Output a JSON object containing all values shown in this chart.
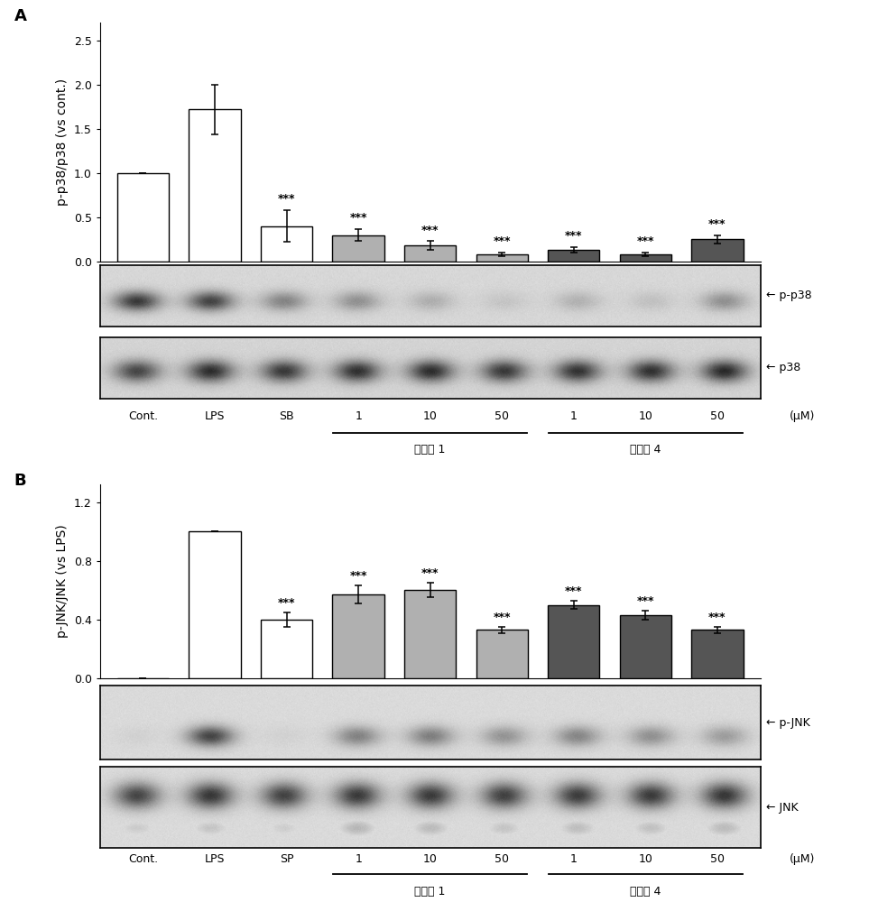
{
  "panel_A": {
    "categories": [
      "Cont.",
      "LPS",
      "SB",
      "1",
      "10",
      "50",
      "1",
      "10",
      "50"
    ],
    "values": [
      1.0,
      1.72,
      0.4,
      0.3,
      0.18,
      0.08,
      0.13,
      0.08,
      0.25
    ],
    "errors": [
      0.0,
      0.28,
      0.18,
      0.07,
      0.05,
      0.02,
      0.03,
      0.02,
      0.05
    ],
    "colors": [
      "white",
      "white",
      "white",
      "#b0b0b0",
      "#b0b0b0",
      "#b0b0b0",
      "#555555",
      "#555555",
      "#555555"
    ],
    "significance": [
      "",
      "",
      "***",
      "***",
      "***",
      "***",
      "***",
      "***",
      "***"
    ],
    "ylabel": "p-p38/p38 (vs cont.)",
    "yticks": [
      0.0,
      0.5,
      1.0,
      1.5,
      2.0,
      2.5
    ],
    "ylim": [
      0,
      2.7
    ],
    "compound1_label": "化合物 1",
    "compound4_label": "化合物 4",
    "um_label": "(μM)",
    "blot_label1": "← p-p38",
    "blot_label2": "← p38",
    "panel_label": "A",
    "blot1_bands": [
      0.85,
      0.8,
      0.45,
      0.38,
      0.22,
      0.1,
      0.2,
      0.12,
      0.38
    ],
    "blot2_bands": [
      0.75,
      0.88,
      0.82,
      0.86,
      0.88,
      0.82,
      0.85,
      0.86,
      0.9
    ]
  },
  "panel_B": {
    "categories": [
      "Cont.",
      "LPS",
      "SP",
      "1",
      "10",
      "50",
      "1",
      "10",
      "50"
    ],
    "values": [
      0.0,
      1.0,
      0.4,
      0.57,
      0.6,
      0.33,
      0.5,
      0.43,
      0.33
    ],
    "errors": [
      0.0,
      0.0,
      0.05,
      0.06,
      0.05,
      0.02,
      0.03,
      0.03,
      0.02
    ],
    "colors": [
      "white",
      "white",
      "white",
      "#b0b0b0",
      "#b0b0b0",
      "#b0b0b0",
      "#555555",
      "#555555",
      "#555555"
    ],
    "significance": [
      "",
      "",
      "***",
      "***",
      "***",
      "***",
      "***",
      "***",
      "***"
    ],
    "ylabel": "p-JNK/JNK (vs LPS)",
    "yticks": [
      0.0,
      0.4,
      0.8,
      1.2
    ],
    "ylim": [
      0,
      1.32
    ],
    "compound1_label": "化合物 1",
    "compound4_label": "化合物 4",
    "um_label": "(μM)",
    "blot_label1": "← p-JNK",
    "blot_label2": "← JNK",
    "panel_label": "B",
    "blot1_bands": [
      0.05,
      0.85,
      0.05,
      0.5,
      0.52,
      0.4,
      0.48,
      0.42,
      0.35
    ],
    "blot1_bands_upper": [
      0.0,
      0.0,
      0.0,
      0.28,
      0.25,
      0.2,
      0.0,
      0.0,
      0.0
    ],
    "blot2_bands_upper": [
      0.8,
      0.88,
      0.82,
      0.86,
      0.86,
      0.83,
      0.85,
      0.86,
      0.88
    ],
    "blot2_bands_lower": [
      0.4,
      0.45,
      0.38,
      0.55,
      0.52,
      0.45,
      0.5,
      0.48,
      0.52
    ]
  },
  "bar_edgecolor": "black",
  "error_capsize": 3,
  "fontsize_label": 10,
  "fontsize_tick": 9,
  "fontsize_sig": 9,
  "fontsize_panel": 13,
  "fontsize_xcat": 9
}
